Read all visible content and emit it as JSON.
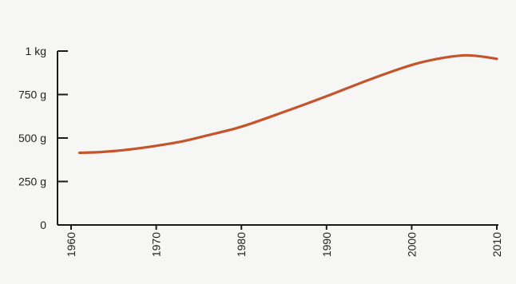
{
  "chart_data": {
    "type": "line",
    "title": "",
    "xlabel": "",
    "ylabel": "",
    "xlim": [
      1960,
      2010
    ],
    "ylim": [
      0,
      1000
    ],
    "grid": false,
    "x_ticks": [
      {
        "value": 1960,
        "label": "1960"
      },
      {
        "value": 1970,
        "label": "1970"
      },
      {
        "value": 1980,
        "label": "1980"
      },
      {
        "value": 1990,
        "label": "1990"
      },
      {
        "value": 2000,
        "label": "2000"
      },
      {
        "value": 2010,
        "label": "2010"
      }
    ],
    "y_ticks": [
      {
        "value": 0,
        "label": "0"
      },
      {
        "value": 250,
        "label": "250 g"
      },
      {
        "value": 500,
        "label": "500 g"
      },
      {
        "value": 750,
        "label": "750 g"
      },
      {
        "value": 1000,
        "label": "1 kg"
      }
    ],
    "series": [
      {
        "color": "#c4552a",
        "x": [
          1961,
          1963,
          1965,
          1967,
          1970,
          1973,
          1976,
          1980,
          1985,
          1990,
          1995,
          2000,
          2003,
          2006,
          2008,
          2010
        ],
        "y": [
          415,
          418,
          425,
          435,
          455,
          480,
          515,
          565,
          650,
          740,
          835,
          920,
          955,
          975,
          970,
          955
        ]
      }
    ]
  }
}
